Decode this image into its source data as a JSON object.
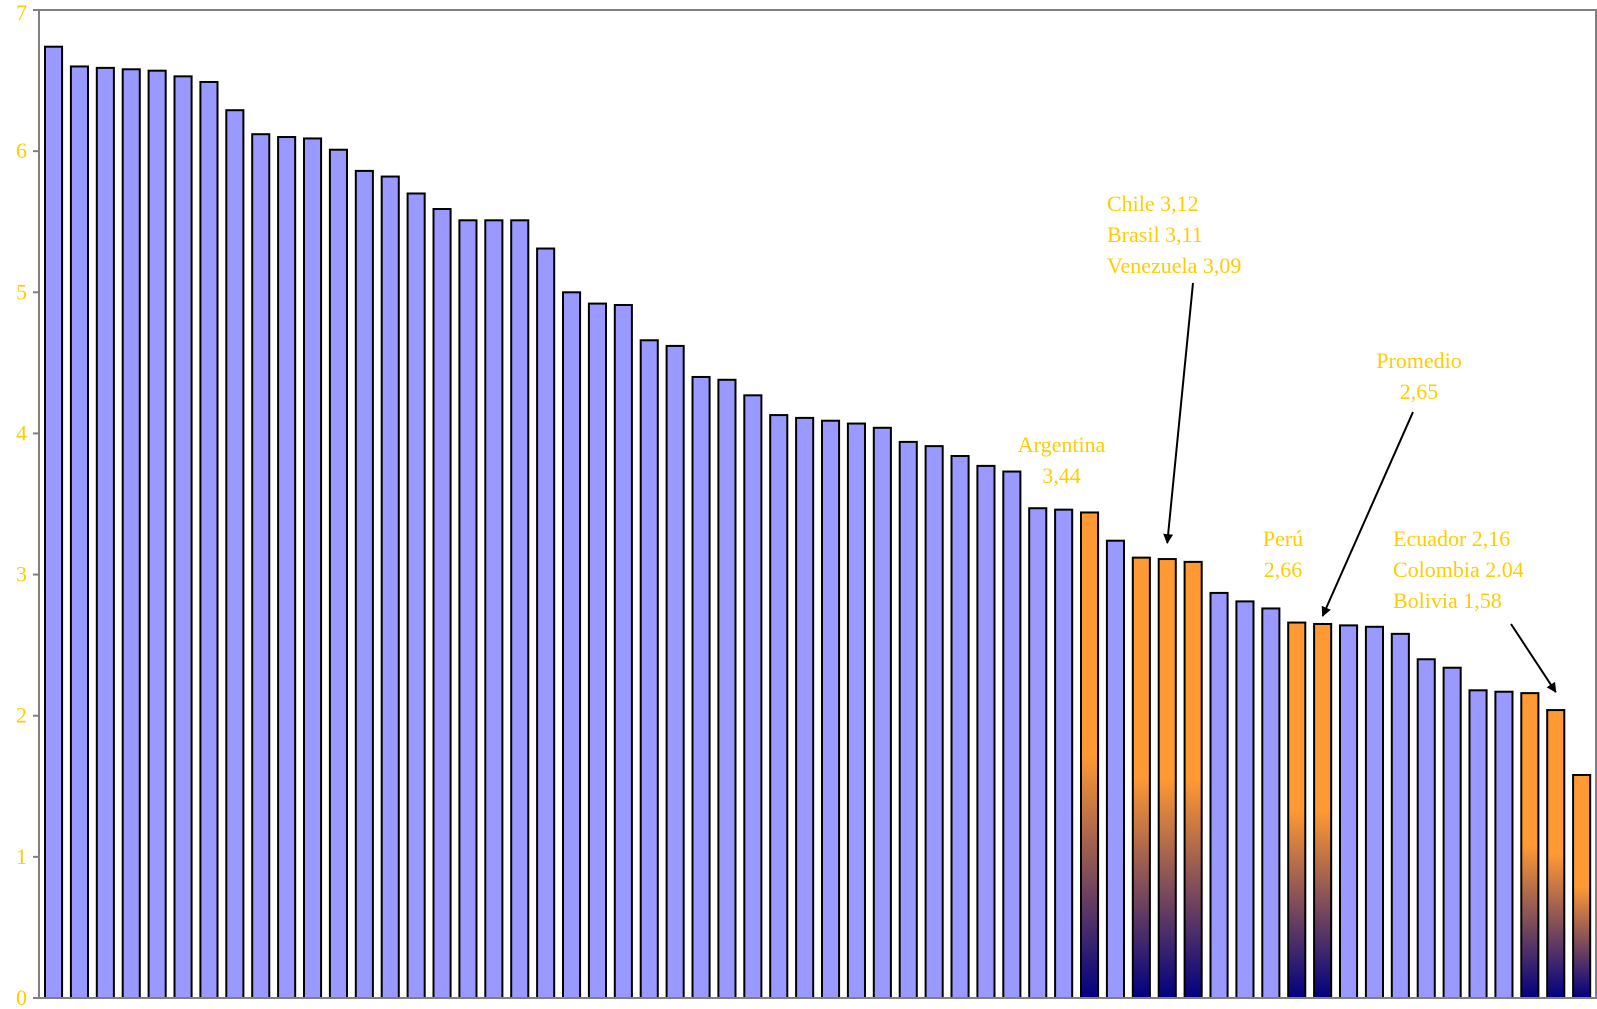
{
  "chart_data": {
    "type": "bar",
    "title": "",
    "xlabel": "",
    "ylabel": "",
    "ylim": [
      0,
      7
    ],
    "yticks": [
      0,
      1,
      2,
      3,
      4,
      5,
      6,
      7
    ],
    "grid": false,
    "values": [
      6.74,
      6.6,
      6.59,
      6.58,
      6.57,
      6.53,
      6.49,
      6.29,
      6.12,
      6.1,
      6.09,
      6.01,
      5.86,
      5.82,
      5.7,
      5.59,
      5.51,
      5.51,
      5.51,
      5.31,
      5.0,
      4.92,
      4.91,
      4.66,
      4.62,
      4.4,
      4.38,
      4.27,
      4.13,
      4.11,
      4.09,
      4.07,
      4.04,
      3.94,
      3.91,
      3.84,
      3.77,
      3.73,
      3.47,
      3.46,
      3.44,
      3.24,
      3.12,
      3.11,
      3.09,
      2.87,
      2.81,
      2.76,
      2.66,
      2.65,
      2.64,
      2.63,
      2.58,
      2.4,
      2.34,
      2.18,
      2.17,
      2.16,
      2.04,
      1.58
    ],
    "highlighted_indices": [
      40,
      42,
      43,
      44,
      48,
      49,
      57,
      58,
      59
    ],
    "colors": {
      "bar": "#9999ff",
      "bar_stroke": "#000000",
      "highlight_top": "#ff9933",
      "highlight_bottom": "#000080",
      "text": "#ffcc00",
      "axis": "#808080",
      "arrow": "#000000"
    },
    "annotations": [
      {
        "lines": [
          "Argentina",
          "3,44"
        ],
        "align": "center"
      },
      {
        "lines": [
          "Chile           3,12",
          "Brasil           3,11",
          "Venezuela  3,09"
        ],
        "align": "left"
      },
      {
        "lines": [
          "Perú",
          "2,66"
        ],
        "align": "center"
      },
      {
        "lines": [
          "Promedio",
          "2,65"
        ],
        "align": "center"
      },
      {
        "lines": [
          "Ecuador 2,16",
          "Colombia 2.04",
          "Bolivia  1,58"
        ],
        "align": "left"
      }
    ]
  }
}
